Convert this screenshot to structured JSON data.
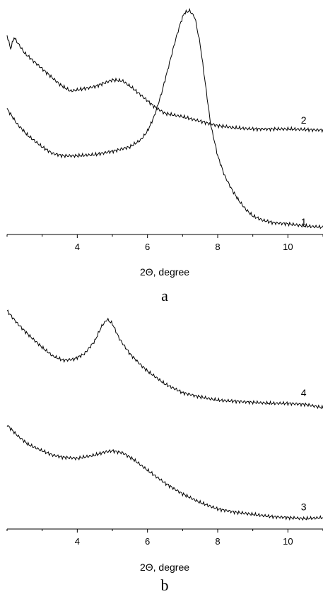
{
  "chart_data": [
    {
      "type": "line",
      "panel_label": "a",
      "xlabel": "2Θ, degree",
      "ylabel": "",
      "xlim": [
        2.0,
        11.0
      ],
      "ylim": [
        0,
        100
      ],
      "y_axis_shown": false,
      "x_ticks": [
        4,
        6,
        8,
        10
      ],
      "x_tick_labels": [
        "4",
        "6",
        "8",
        "10"
      ],
      "grid": false,
      "series": [
        {
          "name": "1",
          "label_at": [
            10.45,
            4.5
          ],
          "x": [
            2.0,
            2.3,
            2.6,
            3.0,
            3.3,
            3.6,
            4.0,
            4.5,
            5.0,
            5.5,
            5.8,
            6.0,
            6.2,
            6.4,
            6.6,
            6.8,
            6.95,
            7.05,
            7.2,
            7.35,
            7.5,
            7.65,
            7.8,
            8.0,
            8.2,
            8.4,
            8.6,
            8.8,
            9.0,
            9.3,
            9.6,
            10.0,
            10.5,
            11.0
          ],
          "values": [
            55,
            48,
            43,
            38,
            35,
            34,
            34,
            34.5,
            36,
            38,
            41,
            45,
            52,
            62,
            74,
            86,
            94,
            98,
            99,
            96,
            84,
            66,
            48,
            34,
            25,
            19,
            14,
            10,
            7,
            5,
            4,
            3.5,
            2.5,
            2
          ]
        },
        {
          "name": "2",
          "label_at": [
            10.45,
            50
          ],
          "x": [
            2.0,
            2.1,
            2.2,
            2.5,
            3.0,
            3.5,
            3.8,
            4.0,
            4.5,
            5.0,
            5.3,
            5.6,
            5.9,
            6.2,
            6.5,
            7.0,
            7.5,
            8.0,
            8.5,
            9.0,
            10.0,
            11.0
          ],
          "values": [
            88,
            82,
            87,
            80,
            73,
            66,
            63,
            63.5,
            65,
            68,
            67.5,
            64,
            60,
            56,
            53,
            51.5,
            49.5,
            47.5,
            46.5,
            46,
            46,
            45.5
          ]
        }
      ]
    },
    {
      "type": "line",
      "panel_label": "b",
      "xlabel": "2Θ, degree",
      "ylabel": "",
      "xlim": [
        2.0,
        11.0
      ],
      "ylim": [
        0,
        100
      ],
      "y_axis_shown": false,
      "x_ticks": [
        4,
        6,
        8,
        10
      ],
      "x_tick_labels": [
        "4",
        "6",
        "8",
        "10"
      ],
      "grid": false,
      "series": [
        {
          "name": "4",
          "label_at": [
            10.45,
            62
          ],
          "x": [
            2.0,
            2.3,
            2.6,
            3.0,
            3.3,
            3.6,
            3.9,
            4.2,
            4.5,
            4.7,
            4.85,
            5.0,
            5.2,
            5.5,
            5.8,
            6.0,
            6.5,
            7.0,
            7.5,
            8.0,
            8.5,
            9.0,
            9.5,
            10.0,
            10.5,
            11.0
          ],
          "values": [
            100,
            94,
            89,
            83,
            79,
            77,
            77.5,
            80,
            86,
            93,
            96,
            94,
            87,
            80,
            75,
            72,
            66,
            62,
            60,
            58.5,
            58,
            57.5,
            57,
            57,
            56.5,
            55
          ]
        },
        {
          "name": "3",
          "label_at": [
            10.45,
            9
          ],
          "x": [
            2.0,
            2.3,
            2.6,
            3.0,
            3.3,
            3.6,
            4.0,
            4.5,
            4.8,
            5.0,
            5.3,
            5.6,
            6.0,
            6.5,
            7.0,
            7.5,
            8.0,
            8.5,
            9.0,
            9.5,
            10.0,
            10.5,
            11.0
          ],
          "values": [
            47,
            42,
            38,
            35,
            33,
            32,
            31.5,
            33,
            34.5,
            35,
            34,
            31,
            26,
            20,
            15,
            11,
            8,
            6.5,
            5.5,
            4.5,
            4,
            3.5,
            4
          ]
        }
      ]
    }
  ]
}
